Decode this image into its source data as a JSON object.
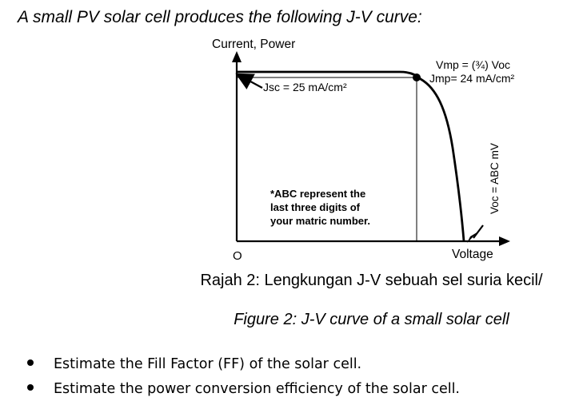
{
  "intro_text": "A small PV solar cell produces the following J-V curve:",
  "diagram": {
    "y_axis_label": "Current, Power",
    "x_axis_label": "Voltage",
    "origin_label": "O",
    "jsc_label": "Jsc = 25 mA/cm²",
    "vmp_label": "Vmp = (¾) Voc",
    "jmp_label": "Jmp= 24 mA/cm²",
    "voc_label": "Voc = ABC mV",
    "note_lines": [
      "*ABC represent the",
      "last three digits of",
      "your matric number."
    ]
  },
  "caption_ms": "Rajah 2: Lengkungan J-V sebuah sel suria kecil/",
  "caption_en": "Figure 2: J-V curve of a small solar cell",
  "questions": [
    "Estimate the Fill Factor (FF) of the solar cell.",
    "Estimate the power conversion efficiency of the solar cell."
  ]
}
